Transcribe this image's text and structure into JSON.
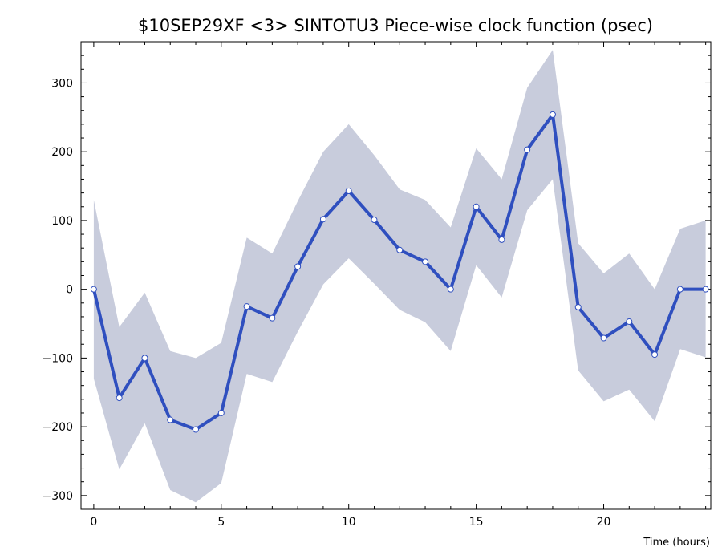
{
  "chart_data": {
    "type": "line",
    "title": "$10SEP29XF <3>  SINTOTU3  Piece-wise clock function (psec)",
    "xlabel": "Time (hours)",
    "ylabel": "",
    "xlim": [
      -0.5,
      24.2
    ],
    "ylim": [
      -320,
      360
    ],
    "x_ticks": [
      0,
      5,
      10,
      15,
      20
    ],
    "y_ticks": [
      -300,
      -200,
      -100,
      0,
      100,
      200,
      300
    ],
    "grid": false,
    "colors": {
      "line": "#2f4fbf",
      "band": "#c8ccdc",
      "marker_fill": "#ffffff"
    },
    "series": [
      {
        "x": [
          0,
          1,
          2,
          3,
          4,
          5,
          6,
          7,
          8,
          9,
          10,
          11,
          12,
          13,
          14,
          15,
          16,
          17,
          18,
          19,
          20,
          21,
          22,
          23,
          24
        ],
        "values": [
          0,
          -158,
          -100,
          -190,
          -204,
          -180,
          -25,
          -42,
          33,
          102,
          143,
          101,
          57,
          40,
          0,
          120,
          72,
          203,
          254,
          -26,
          -71,
          -47,
          -95,
          0,
          0
        ],
        "band_upper": [
          130,
          -55,
          -5,
          -90,
          -100,
          -78,
          75,
          52,
          128,
          200,
          240,
          195,
          145,
          130,
          90,
          205,
          160,
          293,
          348,
          67,
          23,
          52,
          0,
          88,
          100
        ],
        "band_lower": [
          -130,
          -262,
          -195,
          -292,
          -310,
          -282,
          -123,
          -135,
          -62,
          7,
          45,
          8,
          -30,
          -48,
          -90,
          35,
          -12,
          115,
          160,
          -118,
          -163,
          -146,
          -192,
          -87,
          -99
        ]
      }
    ]
  }
}
